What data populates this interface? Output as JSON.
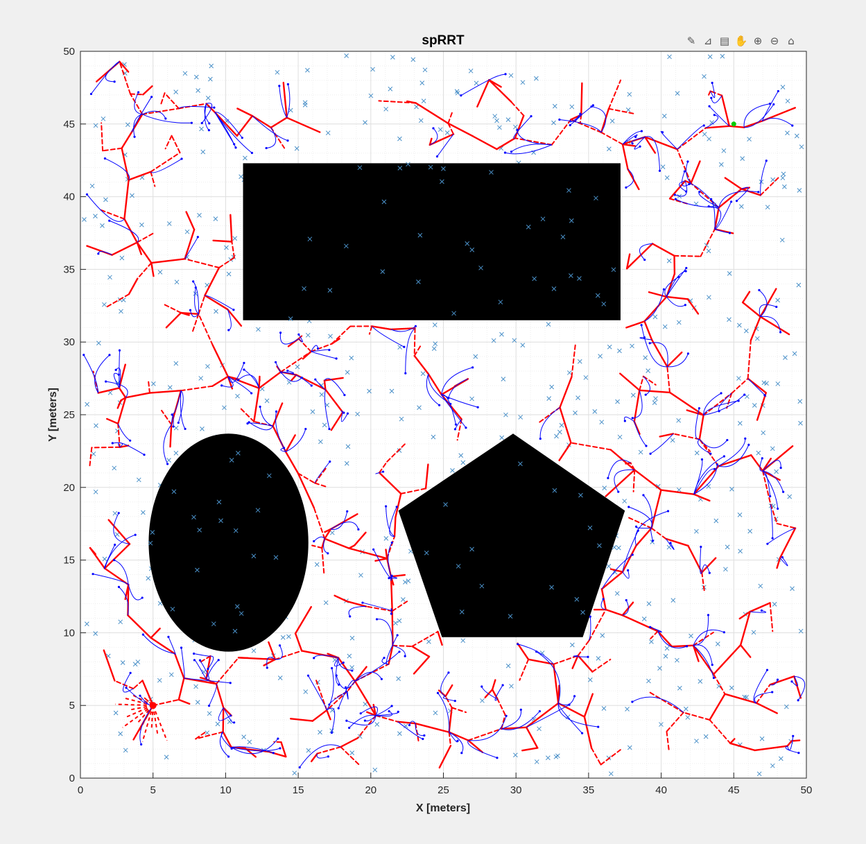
{
  "window": {
    "toolbar_icons": [
      "edit-icon",
      "brush-icon",
      "datatip-icon",
      "pan-icon",
      "zoom-in-icon",
      "zoom-out-icon",
      "home-icon"
    ]
  },
  "colors": {
    "background": "#f0f0f0",
    "axes_bg": "#ffffff",
    "grid": "#dedede",
    "tree_edge": "#ff0000",
    "path": "#0000ff",
    "sample": "#4a90c8",
    "obstacle": "#000000",
    "start": "#ff0000",
    "goal": "#00cc00"
  },
  "chart_data": {
    "type": "scatter",
    "title": "spRRT",
    "xlabel": "X [meters]",
    "ylabel": "Y [meters]",
    "xlim": [
      0,
      50
    ],
    "ylim": [
      0,
      50
    ],
    "xticks": [
      "0",
      "5",
      "10",
      "15",
      "20",
      "25",
      "30",
      "35",
      "40",
      "45",
      "50"
    ],
    "yticks": [
      "0",
      "5",
      "10",
      "15",
      "20",
      "25",
      "30",
      "35",
      "40",
      "45",
      "50"
    ],
    "grid": "on",
    "minor_grid": "on",
    "obstacles": [
      {
        "name": "rectangle",
        "shape": "rect",
        "x": [
          11.2,
          37.2
        ],
        "y": [
          31.5,
          42.3
        ]
      },
      {
        "name": "ellipse",
        "shape": "ellipse",
        "center": [
          10.2,
          16.2
        ],
        "rx": 5.5,
        "ry": 7.5
      },
      {
        "name": "pentagon",
        "shape": "polygon",
        "points": [
          [
            29.8,
            23.7
          ],
          [
            37.5,
            18.4
          ],
          [
            34.6,
            9.7
          ],
          [
            24.9,
            9.7
          ],
          [
            21.9,
            18.4
          ]
        ]
      }
    ],
    "start": [
      5,
      5
    ],
    "goal": [
      45,
      45
    ]
  }
}
